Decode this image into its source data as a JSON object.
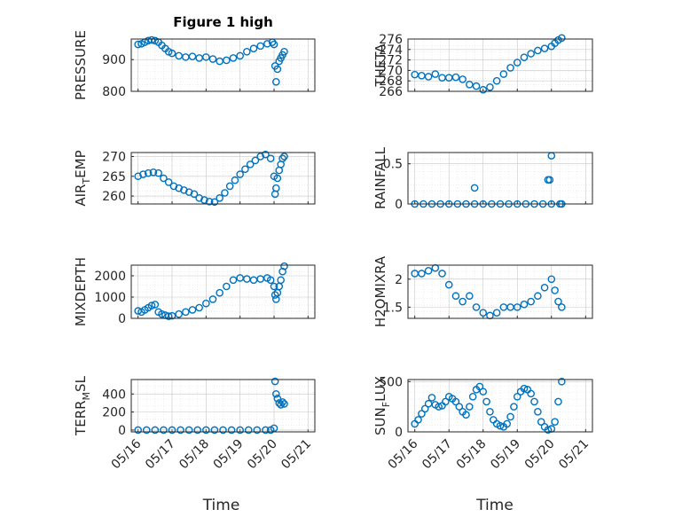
{
  "figure": {
    "title": "Figure 1 high",
    "xlabel": "Time"
  },
  "colors": {
    "series": "#0072BD"
  },
  "chart_data": [
    {
      "type": "scatter",
      "ylabel": "PRESSURE",
      "ylim": [
        800,
        965
      ],
      "yticks": [
        "800",
        "900"
      ],
      "ytick_values": [
        800,
        900
      ],
      "xticks": [
        "05/16",
        "05/17",
        "05/18",
        "05/19",
        "05/20",
        "05/21"
      ],
      "show_xticks": false,
      "x": [
        0.0,
        0.1,
        0.2,
        0.3,
        0.4,
        0.5,
        0.6,
        0.7,
        0.8,
        0.9,
        1.0,
        1.2,
        1.4,
        1.6,
        1.8,
        2.0,
        2.2,
        2.4,
        2.6,
        2.8,
        3.0,
        3.2,
        3.4,
        3.6,
        3.8,
        3.95,
        4.0,
        4.03,
        4.06,
        4.1,
        4.15,
        4.2,
        4.25,
        4.3
      ],
      "y": [
        948,
        950,
        955,
        960,
        962,
        960,
        955,
        945,
        935,
        925,
        920,
        912,
        908,
        910,
        905,
        908,
        902,
        895,
        898,
        905,
        912,
        925,
        935,
        943,
        950,
        955,
        948,
        880,
        830,
        870,
        895,
        905,
        915,
        925
      ]
    },
    {
      "type": "scatter",
      "ylabel": "THETA",
      "ylim": [
        266,
        276
      ],
      "yticks": [
        "266",
        "268",
        "270",
        "272",
        "274",
        "276"
      ],
      "ytick_values": [
        266,
        268,
        270,
        272,
        274,
        276
      ],
      "xticks": [
        "05/16",
        "05/17",
        "05/18",
        "05/19",
        "05/20",
        "05/21"
      ],
      "show_xticks": false,
      "x": [
        0.0,
        0.2,
        0.4,
        0.6,
        0.8,
        1.0,
        1.2,
        1.4,
        1.6,
        1.8,
        2.0,
        2.2,
        2.4,
        2.6,
        2.8,
        3.0,
        3.2,
        3.4,
        3.6,
        3.8,
        4.0,
        4.1,
        4.2,
        4.3
      ],
      "y": [
        269.2,
        269,
        268.8,
        269.3,
        268.6,
        268.6,
        268.7,
        268.3,
        267.3,
        267,
        266.3,
        266.8,
        268,
        269.3,
        270.5,
        271.5,
        272.5,
        273.2,
        273.8,
        274.2,
        274.6,
        275.2,
        275.8,
        276.2
      ]
    },
    {
      "type": "scatter",
      "ylabel": "AIR_TEMP",
      "ylim": [
        258,
        271
      ],
      "yticks": [
        "260",
        "265",
        "270"
      ],
      "ytick_values": [
        260,
        265,
        270
      ],
      "xticks": [
        "05/16",
        "05/17",
        "05/18",
        "05/19",
        "05/20",
        "05/21"
      ],
      "show_xticks": false,
      "x": [
        0.0,
        0.15,
        0.3,
        0.45,
        0.6,
        0.75,
        0.9,
        1.05,
        1.2,
        1.35,
        1.5,
        1.65,
        1.8,
        1.95,
        2.1,
        2.25,
        2.4,
        2.55,
        2.7,
        2.85,
        3.0,
        3.15,
        3.3,
        3.45,
        3.6,
        3.75,
        3.9,
        4.0,
        4.03,
        4.06,
        4.1,
        4.15,
        4.2,
        4.25,
        4.3
      ],
      "y": [
        265,
        265.5,
        265.8,
        266,
        265.8,
        264.5,
        263.5,
        262.5,
        262,
        261.5,
        261,
        260.5,
        259.5,
        259,
        258.6,
        258.5,
        259.5,
        260.8,
        262.5,
        264,
        265.5,
        266.8,
        268,
        269,
        270,
        270.5,
        269.5,
        265,
        260.5,
        262,
        264.5,
        266.5,
        268,
        269.5,
        270
      ]
    },
    {
      "type": "scatter",
      "ylabel": "RAINFALL",
      "ylim": [
        0,
        0.64
      ],
      "yticks": [
        "0",
        "0.5"
      ],
      "ytick_values": [
        0,
        0.5
      ],
      "xticks": [
        "05/16",
        "05/17",
        "05/18",
        "05/19",
        "05/20",
        "05/21"
      ],
      "show_xticks": false,
      "x": [
        0.0,
        0.25,
        0.5,
        0.75,
        1.0,
        1.25,
        1.5,
        1.75,
        2.0,
        2.25,
        2.5,
        2.75,
        3.0,
        3.25,
        3.5,
        3.75,
        4.0,
        4.25,
        4.3,
        1.75,
        3.9,
        3.95,
        4.0
      ],
      "y": [
        0,
        0,
        0,
        0,
        0,
        0,
        0,
        0,
        0,
        0,
        0,
        0,
        0,
        0,
        0,
        0,
        0,
        0,
        0,
        0.2,
        0.3,
        0.3,
        0.6
      ]
    },
    {
      "type": "scatter",
      "ylabel": "MIXDEPTH",
      "ylim": [
        0,
        2500
      ],
      "yticks": [
        "0",
        "1000",
        "2000"
      ],
      "ytick_values": [
        0,
        1000,
        2000
      ],
      "xticks": [
        "05/16",
        "05/17",
        "05/18",
        "05/19",
        "05/20",
        "05/21"
      ],
      "show_xticks": false,
      "x": [
        0.0,
        0.1,
        0.2,
        0.3,
        0.4,
        0.5,
        0.6,
        0.7,
        0.8,
        0.9,
        1.0,
        1.2,
        1.4,
        1.6,
        1.8,
        2.0,
        2.2,
        2.4,
        2.6,
        2.8,
        3.0,
        3.2,
        3.4,
        3.6,
        3.8,
        3.9,
        4.0,
        4.03,
        4.06,
        4.1,
        4.15,
        4.2,
        4.25,
        4.3
      ],
      "y": [
        350,
        300,
        400,
        500,
        600,
        650,
        300,
        200,
        150,
        100,
        120,
        200,
        300,
        400,
        500,
        700,
        900,
        1200,
        1500,
        1800,
        1900,
        1850,
        1800,
        1850,
        1900,
        1800,
        1500,
        1100,
        900,
        1200,
        1500,
        1800,
        2200,
        2450
      ]
    },
    {
      "type": "scatter",
      "ylabel": "H2OMIXRA",
      "ylim": [
        1.3,
        2.25
      ],
      "yticks": [
        "1.5",
        "2"
      ],
      "ytick_values": [
        1.5,
        2
      ],
      "xticks": [
        "05/16",
        "05/17",
        "05/18",
        "05/19",
        "05/20",
        "05/21"
      ],
      "show_xticks": false,
      "x": [
        0.0,
        0.2,
        0.4,
        0.6,
        0.8,
        1.0,
        1.2,
        1.4,
        1.6,
        1.8,
        2.0,
        2.2,
        2.4,
        2.6,
        2.8,
        3.0,
        3.2,
        3.4,
        3.6,
        3.8,
        4.0,
        4.1,
        4.2,
        4.3
      ],
      "y": [
        2.1,
        2.1,
        2.15,
        2.2,
        2.1,
        1.9,
        1.7,
        1.6,
        1.7,
        1.5,
        1.4,
        1.35,
        1.4,
        1.5,
        1.5,
        1.5,
        1.55,
        1.6,
        1.7,
        1.85,
        2.0,
        1.8,
        1.6,
        1.5
      ]
    },
    {
      "type": "scatter",
      "ylabel": "TERR_MSL",
      "ylim": [
        -20,
        560
      ],
      "yticks": [
        "0",
        "200",
        "400"
      ],
      "ytick_values": [
        0,
        200,
        400
      ],
      "xticks": [
        "05/16",
        "05/17",
        "05/18",
        "05/19",
        "05/20",
        "05/21"
      ],
      "show_xticks": true,
      "x": [
        0.0,
        0.25,
        0.5,
        0.75,
        1.0,
        1.25,
        1.5,
        1.75,
        2.0,
        2.25,
        2.5,
        2.75,
        3.0,
        3.25,
        3.5,
        3.75,
        3.9,
        4.0,
        4.03,
        4.06,
        4.1,
        4.15,
        4.2,
        4.25,
        4.3
      ],
      "y": [
        0,
        0,
        0,
        0,
        0,
        0,
        0,
        0,
        0,
        0,
        0,
        0,
        0,
        0,
        0,
        0,
        0,
        20,
        540,
        400,
        350,
        300,
        280,
        310,
        290
      ]
    },
    {
      "type": "scatter",
      "ylabel": "SUN_FLUX",
      "ylim": [
        0,
        520
      ],
      "yticks": [
        "0",
        "500"
      ],
      "ytick_values": [
        0,
        500
      ],
      "xticks": [
        "05/16",
        "05/17",
        "05/18",
        "05/19",
        "05/20",
        "05/21"
      ],
      "show_xticks": true,
      "x": [
        0.0,
        0.1,
        0.2,
        0.3,
        0.4,
        0.5,
        0.6,
        0.7,
        0.8,
        0.9,
        1.0,
        1.1,
        1.2,
        1.3,
        1.4,
        1.5,
        1.6,
        1.7,
        1.8,
        1.9,
        2.0,
        2.1,
        2.2,
        2.3,
        2.4,
        2.5,
        2.6,
        2.7,
        2.8,
        2.9,
        3.0,
        3.1,
        3.2,
        3.3,
        3.4,
        3.5,
        3.6,
        3.7,
        3.8,
        3.9,
        4.0,
        4.1,
        4.2,
        4.3
      ],
      "y": [
        80,
        120,
        180,
        230,
        280,
        340,
        270,
        250,
        260,
        300,
        350,
        330,
        300,
        250,
        200,
        170,
        250,
        350,
        420,
        450,
        400,
        300,
        200,
        120,
        80,
        60,
        50,
        80,
        150,
        250,
        350,
        400,
        430,
        420,
        380,
        300,
        200,
        100,
        50,
        20,
        30,
        100,
        300,
        500
      ]
    }
  ]
}
